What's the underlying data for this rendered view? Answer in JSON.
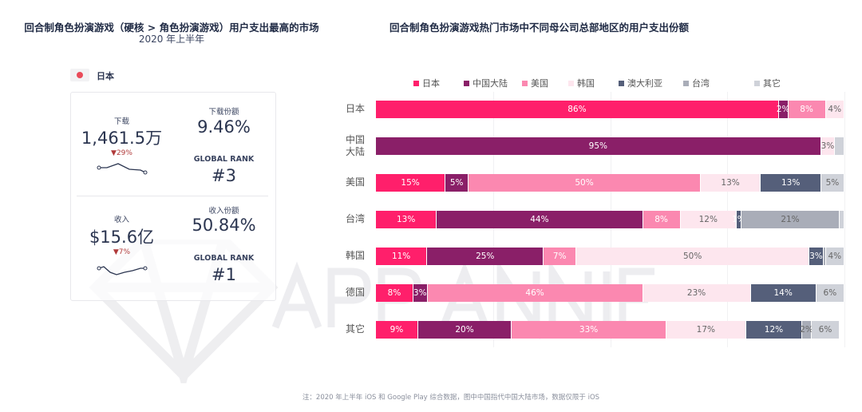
{
  "left": {
    "title": "回合制角色扮演游戏（硬核 > 角色扮演游戏）用户支出最高的市场",
    "subtitle": "2020 年上半年",
    "country": "日本",
    "flag_color": "#e94b5a",
    "downloads": {
      "label": "下载",
      "value": "1,461.5万",
      "change": "▼29%",
      "share_label": "下载份额",
      "share": "9.46%",
      "rank_label": "GLOBAL RANK",
      "rank": "#3"
    },
    "revenue": {
      "label": "收入",
      "value": "$15.6亿",
      "change": "▼7%",
      "share_label": "收入份额",
      "share": "50.84%",
      "rank_label": "GLOBAL RANK",
      "rank": "#1"
    }
  },
  "watermark": "APP ANNIE",
  "note": "注：2020 年上半年 iOS 和 Google Play 综合数据，图中中国指代中国大陆市场，数据仅限于 iOS",
  "chart_data": {
    "type": "bar",
    "stacked": true,
    "orientation": "horizontal",
    "unit": "%",
    "title": "回合制角色扮演游戏热门市场中不同母公司总部地区的用户支出份额",
    "legend_position": "top",
    "categories": [
      "日本",
      "中国大陆",
      "美国",
      "台湾",
      "韩国",
      "德国",
      "其它"
    ],
    "series": [
      {
        "name": "日本",
        "color": "#ff1f6b",
        "values": [
          86,
          0,
          15,
          13,
          11,
          8,
          9
        ]
      },
      {
        "name": "中国大陆",
        "color": "#8a1f68",
        "values": [
          2,
          95,
          5,
          44,
          25,
          3,
          20
        ]
      },
      {
        "name": "美国",
        "color": "#fb88b0",
        "values": [
          8,
          0,
          50,
          8,
          7,
          46,
          33
        ]
      },
      {
        "name": "韩国",
        "color": "#fde6ee",
        "values": [
          4,
          3,
          13,
          12,
          50,
          23,
          17
        ]
      },
      {
        "name": "澳大利亚",
        "color": "#555f7a",
        "values": [
          0,
          0,
          13,
          1,
          3,
          14,
          12
        ]
      },
      {
        "name": "台湾",
        "color": "#a9adb8",
        "values": [
          0,
          0,
          0,
          21,
          0.5,
          0,
          2
        ]
      },
      {
        "name": "其它",
        "color": "#cfd2d9",
        "values": [
          0,
          2,
          5,
          1,
          4,
          6,
          6
        ]
      }
    ],
    "labels": [
      [
        "86%",
        "2%",
        "8%",
        "4%",
        "",
        "",
        ""
      ],
      [
        "",
        "95%",
        "",
        "3%",
        "",
        "",
        ""
      ],
      [
        "15%",
        "5%",
        "50%",
        "13%",
        "13%",
        "",
        "5%"
      ],
      [
        "13%",
        "44%",
        "8%",
        "12%",
        "1%",
        "21%",
        ""
      ],
      [
        "11%",
        "25%",
        "7%",
        "50%",
        "3%",
        "",
        "4%"
      ],
      [
        "8%",
        "3%",
        "46%",
        "23%",
        "14%",
        "",
        "6%"
      ],
      [
        "9%",
        "20%",
        "33%",
        "17%",
        "12%",
        "2%",
        "6%"
      ]
    ],
    "xlim": [
      0,
      100
    ],
    "grid": true
  }
}
